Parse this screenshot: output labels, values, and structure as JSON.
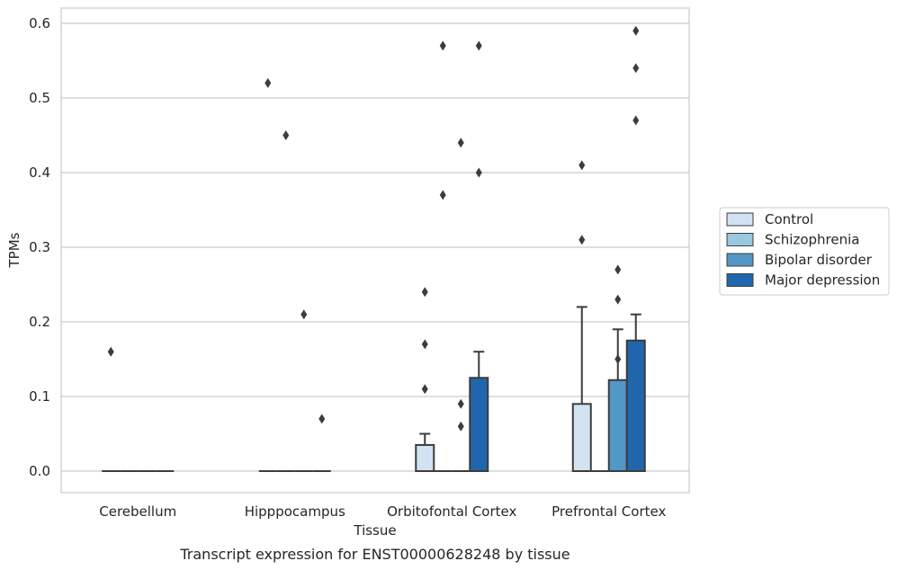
{
  "chart_data": {
    "type": "box",
    "title": "",
    "caption": "Transcript expression for ENST00000628248 by tissue",
    "xlabel": "Tissue",
    "ylabel": "TPMs",
    "ylim": [
      -0.028,
      0.62
    ],
    "yticks": [
      0.0,
      0.1,
      0.2,
      0.3,
      0.4,
      0.5,
      0.6
    ],
    "ytick_labels": [
      "0.0",
      "0.1",
      "0.2",
      "0.3",
      "0.4",
      "0.5",
      "0.6"
    ],
    "grid": "horizontal",
    "legend_position": "right",
    "categories": [
      "Cerebellum",
      "Hipppocampus",
      "Orbitofontal Cortex",
      "Prefrontal Cortex"
    ],
    "series": [
      {
        "name": "Control",
        "color": "#d3e3f3",
        "boxes": [
          {
            "q1": 0,
            "median": 0,
            "q3": 0,
            "whisker_low": 0,
            "whisker_high": 0,
            "outliers": [
              0.16
            ]
          },
          {
            "q1": 0,
            "median": 0,
            "q3": 0,
            "whisker_low": 0,
            "whisker_high": 0,
            "outliers": [
              0.52
            ]
          },
          {
            "q1": 0,
            "median": 0,
            "q3": 0.035,
            "whisker_low": 0,
            "whisker_high": 0.05,
            "outliers": [
              0.11,
              0.17,
              0.24
            ]
          },
          {
            "q1": 0,
            "median": 0,
            "q3": 0.09,
            "whisker_low": 0,
            "whisker_high": 0.22,
            "outliers": [
              0.31,
              0.41
            ]
          }
        ]
      },
      {
        "name": "Schizophrenia",
        "color": "#9ac8e0",
        "boxes": [
          {
            "q1": 0,
            "median": 0,
            "q3": 0,
            "whisker_low": 0,
            "whisker_high": 0,
            "outliers": []
          },
          {
            "q1": 0,
            "median": 0,
            "q3": 0,
            "whisker_low": 0,
            "whisker_high": 0,
            "outliers": [
              0.45
            ]
          },
          {
            "q1": 0,
            "median": 0,
            "q3": 0,
            "whisker_low": 0,
            "whisker_high": 0,
            "outliers": [
              0.37,
              0.57
            ]
          },
          {
            "q1": 0,
            "median": 0,
            "q3": 0,
            "whisker_low": 0,
            "whisker_high": 0,
            "outliers": []
          }
        ]
      },
      {
        "name": "Bipolar disorder",
        "color": "#5297c6",
        "boxes": [
          {
            "q1": 0,
            "median": 0,
            "q3": 0,
            "whisker_low": 0,
            "whisker_high": 0,
            "outliers": []
          },
          {
            "q1": 0,
            "median": 0,
            "q3": 0,
            "whisker_low": 0,
            "whisker_high": 0,
            "outliers": [
              0.21
            ]
          },
          {
            "q1": 0,
            "median": 0,
            "q3": 0,
            "whisker_low": 0,
            "whisker_high": 0,
            "outliers": [
              0.06,
              0.09,
              0.44
            ]
          },
          {
            "q1": 0,
            "median": 0,
            "q3": 0.122,
            "whisker_low": 0,
            "whisker_high": 0.19,
            "outliers": [
              0.15,
              0.23,
              0.27
            ]
          }
        ]
      },
      {
        "name": "Major depression",
        "color": "#2166ac",
        "boxes": [
          {
            "q1": 0,
            "median": 0,
            "q3": 0,
            "whisker_low": 0,
            "whisker_high": 0,
            "outliers": []
          },
          {
            "q1": 0,
            "median": 0,
            "q3": 0,
            "whisker_low": 0,
            "whisker_high": 0,
            "outliers": [
              0.07
            ]
          },
          {
            "q1": 0,
            "median": 0,
            "q3": 0.125,
            "whisker_low": 0,
            "whisker_high": 0.16,
            "outliers": [
              0.4,
              0.57
            ]
          },
          {
            "q1": 0,
            "median": 0,
            "q3": 0.175,
            "whisker_low": 0,
            "whisker_high": 0.21,
            "outliers": [
              0.47,
              0.54,
              0.59
            ]
          }
        ]
      }
    ]
  }
}
